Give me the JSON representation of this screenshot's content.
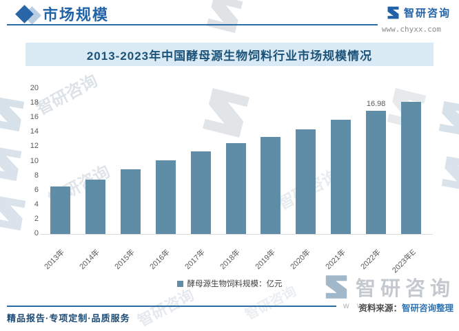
{
  "header": {
    "section_title": "市场规模",
    "brand_name": "智研咨询",
    "brand_url": "www.chyxx.com"
  },
  "chart_data": {
    "type": "bar",
    "title": "2013-2023年中国酵母源生物饲料行业市场规模情况",
    "unit": "亿元",
    "categories": [
      "2013年",
      "2014年",
      "2015年",
      "2016年",
      "2017年",
      "2018年",
      "2019年",
      "2020年",
      "2021年",
      "2022年",
      "2023年E"
    ],
    "values": [
      6.5,
      7.5,
      8.9,
      10.1,
      11.4,
      12.5,
      13.4,
      14.4,
      15.7,
      16.98,
      18.2
    ],
    "labeled_points": [
      {
        "category": "2022年",
        "label": "16.98"
      }
    ],
    "ylim": [
      0,
      20
    ],
    "ytick_step": 2,
    "yticks": [
      0,
      2,
      4,
      6,
      8,
      10,
      12,
      14,
      16,
      18,
      20
    ],
    "grid": false,
    "legend": [
      "酵母源生物饲料规模：亿元"
    ],
    "legend_position": "bottom",
    "bar_color": "#5f8ca6"
  },
  "footer": {
    "source_label": "资料来源：",
    "source_value": "智研咨询整理",
    "tagline": "精品报告·专项定制·品质服务"
  },
  "watermarks": {
    "brand_text": "智研咨询",
    "www_fragment": "w w w"
  }
}
